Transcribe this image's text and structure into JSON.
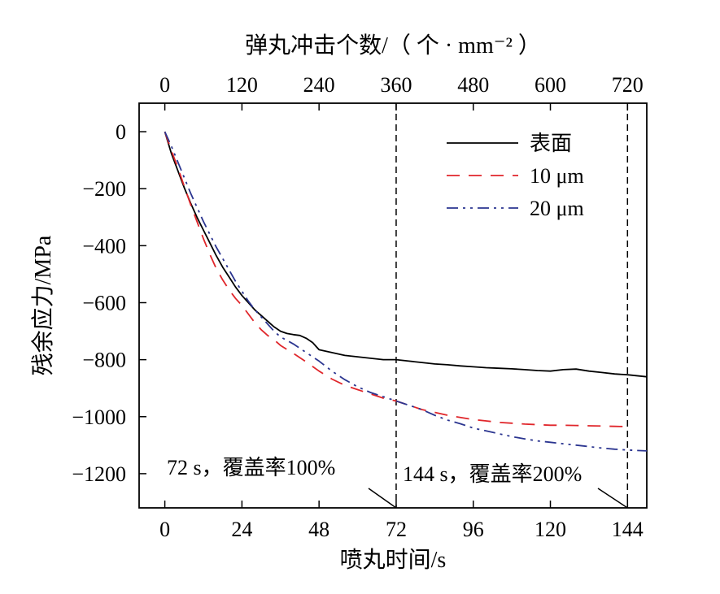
{
  "chart_data": {
    "type": "line",
    "title": "",
    "xlabel": "喷丸时间/s",
    "ylabel": "残余应力/MPa",
    "x2label": "弹丸冲击个数/（ 个 · mm⁻² ）",
    "xlim": [
      -8,
      150
    ],
    "ylim": [
      -1320,
      100
    ],
    "x_ticks": [
      0,
      24,
      48,
      72,
      96,
      120,
      144
    ],
    "x_tick_labels": [
      "0",
      "24",
      "48",
      "72",
      "96",
      "120",
      "144"
    ],
    "x2_ticks": [
      0,
      120,
      240,
      360,
      480,
      600,
      720
    ],
    "x2_tick_labels": [
      "0",
      "120",
      "240",
      "360",
      "480",
      "600",
      "720"
    ],
    "y_ticks": [
      0,
      -200,
      -400,
      -600,
      -800,
      -1000,
      -1200
    ],
    "y_tick_labels": [
      "0",
      "−200",
      "−400",
      "−600",
      "−800",
      "−1000",
      "−1200"
    ],
    "grid": false,
    "legend_position": "top-right",
    "vlines": [
      72,
      144
    ],
    "series": [
      {
        "name": "表面",
        "color": "#000000",
        "dash": "solid",
        "x": [
          0,
          2,
          4,
          6,
          8,
          10,
          12,
          14,
          16,
          18,
          20,
          22,
          24,
          26,
          28,
          30,
          32,
          34,
          36,
          38,
          40,
          42,
          44,
          46,
          48,
          52,
          56,
          60,
          64,
          68,
          72,
          76,
          80,
          84,
          88,
          92,
          96,
          100,
          104,
          108,
          112,
          116,
          120,
          124,
          128,
          132,
          136,
          140,
          144,
          150
        ],
        "y": [
          0,
          -75,
          -135,
          -195,
          -250,
          -300,
          -345,
          -390,
          -435,
          -475,
          -510,
          -545,
          -575,
          -600,
          -625,
          -645,
          -665,
          -685,
          -700,
          -708,
          -712,
          -715,
          -725,
          -740,
          -765,
          -775,
          -785,
          -790,
          -795,
          -800,
          -800,
          -805,
          -810,
          -815,
          -818,
          -822,
          -825,
          -828,
          -830,
          -832,
          -835,
          -838,
          -840,
          -835,
          -833,
          -840,
          -845,
          -850,
          -853,
          -860
        ]
      },
      {
        "name": "10 μm",
        "color": "#e0262b",
        "dash": "long",
        "x": [
          0,
          2,
          4,
          6,
          8,
          10,
          12,
          14,
          16,
          18,
          20,
          22,
          24,
          26,
          28,
          30,
          32,
          34,
          36,
          40,
          44,
          48,
          52,
          56,
          60,
          64,
          68,
          72,
          76,
          80,
          84,
          88,
          92,
          96,
          100,
          104,
          108,
          112,
          116,
          120,
          124,
          128,
          132,
          136,
          140,
          144
        ],
        "y": [
          0,
          -65,
          -125,
          -190,
          -255,
          -315,
          -375,
          -430,
          -480,
          -520,
          -555,
          -585,
          -610,
          -640,
          -670,
          -695,
          -715,
          -730,
          -750,
          -778,
          -808,
          -840,
          -868,
          -890,
          -905,
          -920,
          -935,
          -945,
          -960,
          -975,
          -985,
          -995,
          -1003,
          -1010,
          -1015,
          -1020,
          -1023,
          -1026,
          -1028,
          -1030,
          -1030,
          -1031,
          -1032,
          -1033,
          -1034,
          -1035
        ]
      },
      {
        "name": "20 μm",
        "color": "#2b3590",
        "dash": "dashdotdot",
        "x": [
          0,
          2,
          4,
          6,
          8,
          10,
          12,
          14,
          16,
          18,
          20,
          22,
          24,
          26,
          28,
          30,
          32,
          34,
          36,
          40,
          44,
          48,
          52,
          56,
          60,
          64,
          68,
          72,
          76,
          80,
          84,
          88,
          92,
          96,
          100,
          104,
          108,
          112,
          116,
          120,
          124,
          128,
          132,
          136,
          140,
          144,
          150
        ],
        "y": [
          0,
          -50,
          -105,
          -160,
          -215,
          -265,
          -315,
          -360,
          -405,
          -445,
          -485,
          -525,
          -560,
          -595,
          -625,
          -650,
          -675,
          -700,
          -720,
          -745,
          -775,
          -805,
          -840,
          -870,
          -895,
          -915,
          -930,
          -945,
          -960,
          -975,
          -995,
          -1012,
          -1025,
          -1040,
          -1050,
          -1060,
          -1070,
          -1078,
          -1085,
          -1090,
          -1095,
          -1100,
          -1105,
          -1110,
          -1114,
          -1117,
          -1120
        ]
      }
    ],
    "annotations": [
      {
        "text": "72 s，覆盖率100%",
        "x": 0,
        "y": -1180,
        "arrow_to": [
          72,
          -1320
        ]
      },
      {
        "text": "144 s，覆盖率200%",
        "x": 72,
        "y": -1180,
        "arrow_to": [
          144,
          -1320
        ]
      }
    ]
  }
}
